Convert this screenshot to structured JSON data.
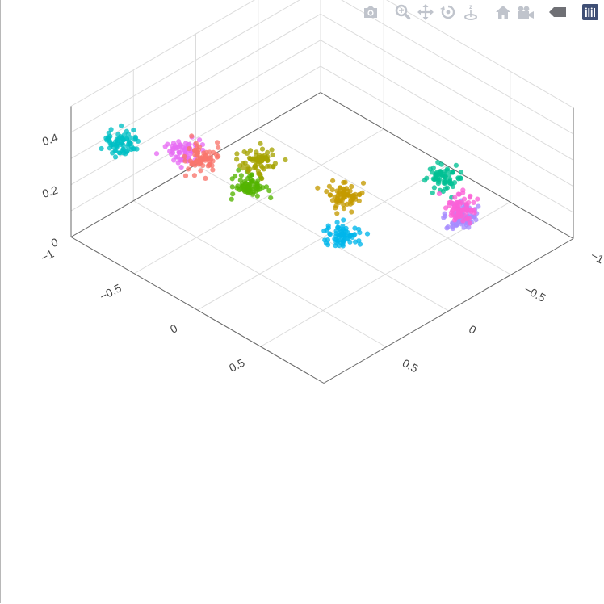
{
  "toolbar": {
    "icons": [
      {
        "name": "camera-icon",
        "label": "Download plot as a png"
      },
      {
        "name": "zoom-icon",
        "label": "Zoom"
      },
      {
        "name": "pan-icon",
        "label": "Pan"
      },
      {
        "name": "orbit-rotation-icon",
        "label": "Orbital rotation"
      },
      {
        "name": "turntable-rotation-icon",
        "label": "Turntable rotation"
      },
      {
        "name": "home-icon",
        "label": "Reset camera to default"
      },
      {
        "name": "camera-last-save-icon",
        "label": "Reset camera to last save"
      },
      {
        "name": "hover-icon",
        "label": "Toggle show closest data on hover"
      },
      {
        "name": "plotly-logo-icon",
        "label": "Produced with Plotly"
      }
    ],
    "icon_color": "#c0c4cc",
    "logo_color": "#3f4f75"
  },
  "chart_data": {
    "type": "scatter",
    "dimensions": 3,
    "title": "",
    "xlabel": "",
    "ylabel": "",
    "zlabel": "",
    "legend": "none",
    "grid": true,
    "axes": {
      "x": {
        "range": [
          -1,
          1
        ],
        "ticks": [
          "−1",
          "−0.5",
          "0",
          "0.5"
        ]
      },
      "y": {
        "range": [
          -1,
          1
        ],
        "ticks": [
          "−1",
          "−0.5",
          "0",
          "0.5"
        ]
      },
      "z": {
        "range": [
          0,
          0.5
        ],
        "ticks": [
          "0",
          "0.2",
          "0.4"
        ]
      }
    },
    "series": [
      {
        "color": "#00bfc4",
        "center": [
          -1.0,
          0.6,
          0.25
        ]
      },
      {
        "color": "#e76bf3",
        "center": [
          -0.6,
          0.5,
          0.3
        ]
      },
      {
        "color": "#f8766d",
        "center": [
          -0.2,
          0.75,
          0.45
        ]
      },
      {
        "color": "#53b400",
        "center": [
          0.15,
          0.75,
          0.45
        ]
      },
      {
        "color": "#c49a00",
        "center": [
          0.6,
          0.45,
          0.45
        ]
      },
      {
        "color": "#00b6eb",
        "center": [
          0.6,
          0.45,
          0.3
        ]
      },
      {
        "color": "#a58aff",
        "center": [
          0.5,
          -0.6,
          0.05
        ]
      },
      {
        "color": "#a5a300",
        "center": [
          -0.5,
          0.0,
          0.15
        ]
      },
      {
        "color": "#00c094",
        "center": [
          0.6,
          -0.35,
          0.3
        ]
      },
      {
        "color": "#fb61d7",
        "center": [
          0.8,
          -0.3,
          0.25
        ]
      }
    ]
  }
}
